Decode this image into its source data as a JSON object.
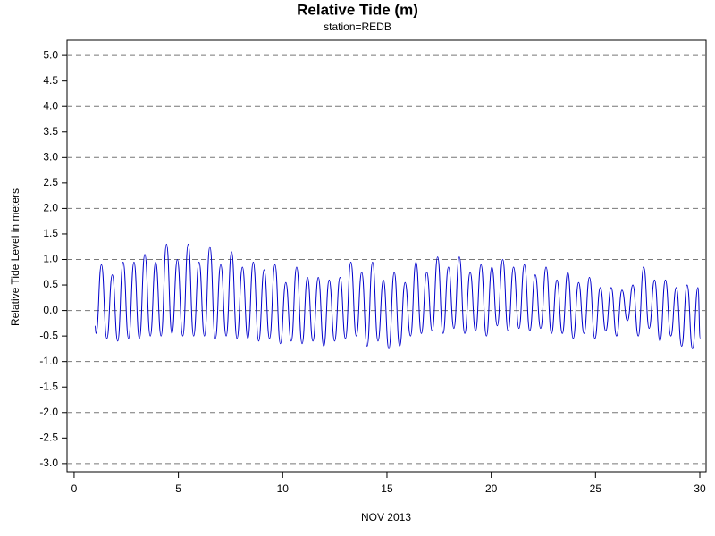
{
  "chart_data": {
    "type": "line",
    "title": "Relative Tide (m)",
    "subtitle": "station=REDB",
    "x_label": "NOV 2013",
    "y_label": "Relative Tide Level in meters",
    "xlim": [
      -0.34,
      30.3
    ],
    "ylim": [
      -3.16,
      5.3
    ],
    "xticks": [
      0,
      5,
      10,
      15,
      20,
      25,
      30
    ],
    "yticks": [
      {
        "value": 5,
        "label": "5.0"
      },
      4.5,
      {
        "value": 4,
        "label": "4.0"
      },
      3.5,
      {
        "value": 3,
        "label": "3.0"
      },
      2.5,
      {
        "value": 2,
        "label": "2.0"
      },
      1.5,
      {
        "value": 1,
        "label": "1.0"
      },
      0.5,
      {
        "value": 0,
        "label": "0.0"
      },
      -0.5,
      {
        "value": -1,
        "label": "-1.0"
      },
      -1.5,
      {
        "value": -2,
        "label": "-2.0"
      },
      -2.5,
      {
        "value": -3,
        "label": "-3.0"
      }
    ],
    "grid": "dashed",
    "series": [
      {
        "name": "station=REDB",
        "color": "#0000cc",
        "x": [
          1.0,
          1.05,
          1.31,
          1.57,
          1.83,
          2.09,
          2.35,
          2.61,
          2.87,
          3.13,
          3.39,
          3.65,
          3.91,
          4.17,
          4.43,
          4.69,
          4.95,
          5.21,
          5.47,
          5.73,
          5.99,
          6.25,
          6.51,
          6.77,
          7.03,
          7.29,
          7.55,
          7.81,
          8.07,
          8.33,
          8.59,
          8.85,
          9.11,
          9.37,
          9.63,
          9.89,
          10.15,
          10.41,
          10.67,
          10.93,
          11.19,
          11.45,
          11.71,
          11.97,
          12.23,
          12.49,
          12.75,
          13.01,
          13.27,
          13.53,
          13.79,
          14.05,
          14.31,
          14.57,
          14.83,
          15.09,
          15.35,
          15.61,
          15.87,
          16.13,
          16.39,
          16.65,
          16.91,
          17.17,
          17.43,
          17.69,
          17.95,
          18.21,
          18.47,
          18.73,
          18.99,
          19.25,
          19.51,
          19.77,
          20.03,
          20.29,
          20.55,
          20.81,
          21.07,
          21.33,
          21.59,
          21.85,
          22.11,
          22.37,
          22.63,
          22.89,
          23.15,
          23.41,
          23.67,
          23.93,
          24.19,
          24.45,
          24.71,
          24.97,
          25.23,
          25.49,
          25.75,
          26.01,
          26.27,
          26.53,
          26.79,
          27.05,
          27.31,
          27.57,
          27.83,
          28.09,
          28.35,
          28.61,
          28.87,
          29.13,
          29.39,
          29.65,
          29.91,
          30.02
        ],
        "values": [
          -0.3,
          -0.45,
          0.9,
          -0.55,
          0.7,
          -0.6,
          0.95,
          -0.55,
          0.95,
          -0.55,
          1.1,
          -0.5,
          0.95,
          -0.5,
          1.3,
          -0.45,
          1.0,
          -0.5,
          1.3,
          -0.5,
          0.95,
          -0.5,
          1.25,
          -0.55,
          0.9,
          -0.5,
          1.15,
          -0.55,
          0.85,
          -0.55,
          0.95,
          -0.6,
          0.8,
          -0.55,
          0.9,
          -0.65,
          0.55,
          -0.6,
          0.85,
          -0.65,
          0.65,
          -0.6,
          0.65,
          -0.7,
          0.6,
          -0.6,
          0.65,
          -0.55,
          0.95,
          -0.5,
          0.75,
          -0.7,
          0.95,
          -0.6,
          0.6,
          -0.75,
          0.75,
          -0.7,
          0.55,
          -0.5,
          0.95,
          -0.45,
          0.75,
          -0.4,
          1.05,
          -0.45,
          0.85,
          -0.35,
          1.05,
          -0.45,
          0.75,
          -0.4,
          0.9,
          -0.5,
          0.85,
          -0.3,
          1.0,
          -0.4,
          0.85,
          -0.35,
          0.9,
          -0.4,
          0.7,
          -0.35,
          0.85,
          -0.45,
          0.6,
          -0.45,
          0.75,
          -0.55,
          0.55,
          -0.45,
          0.65,
          -0.55,
          0.45,
          -0.4,
          0.45,
          -0.5,
          0.4,
          -0.2,
          0.5,
          -0.5,
          0.85,
          -0.35,
          0.6,
          -0.6,
          0.6,
          -0.5,
          0.45,
          -0.7,
          0.5,
          -0.75,
          0.45,
          -0.55
        ]
      }
    ]
  }
}
